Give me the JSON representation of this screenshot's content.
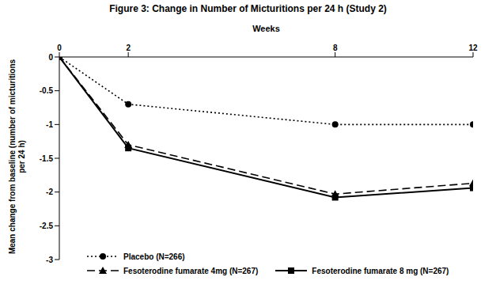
{
  "chart_data": {
    "type": "line",
    "title": "Figure 3: Change in Number of Micturitions per 24 h (Study 2)",
    "x_label": "Weeks",
    "y_label": "Mean change from baseline (number of micturitions per 24 h)",
    "x": [
      0,
      2,
      8,
      12
    ],
    "series": [
      {
        "name": "Placebo (N=266)",
        "color": "#000000",
        "marker": "circle",
        "line_style": "dotted",
        "values": [
          0,
          -0.7,
          -1.0,
          -1.0
        ]
      },
      {
        "name": "Fesoterodine fumarate 4mg (N=267)",
        "color": "#000000",
        "marker": "triangle",
        "line_style": "dashed",
        "values": [
          0,
          -1.3,
          -2.03,
          -1.87
        ]
      },
      {
        "name": "Fesoterodine fumarate 8 mg (N=267)",
        "color": "#000000",
        "marker": "square",
        "line_style": "solid",
        "values": [
          0,
          -1.35,
          -2.08,
          -1.94
        ]
      }
    ],
    "xlim": [
      0,
      12
    ],
    "xticks": [
      0,
      2,
      8,
      12
    ],
    "ylim": [
      -3,
      0
    ],
    "yticks": [
      0,
      -0.5,
      -1,
      -1.5,
      -2,
      -2.5,
      -3
    ],
    "grid": false,
    "legend": "lower left"
  }
}
